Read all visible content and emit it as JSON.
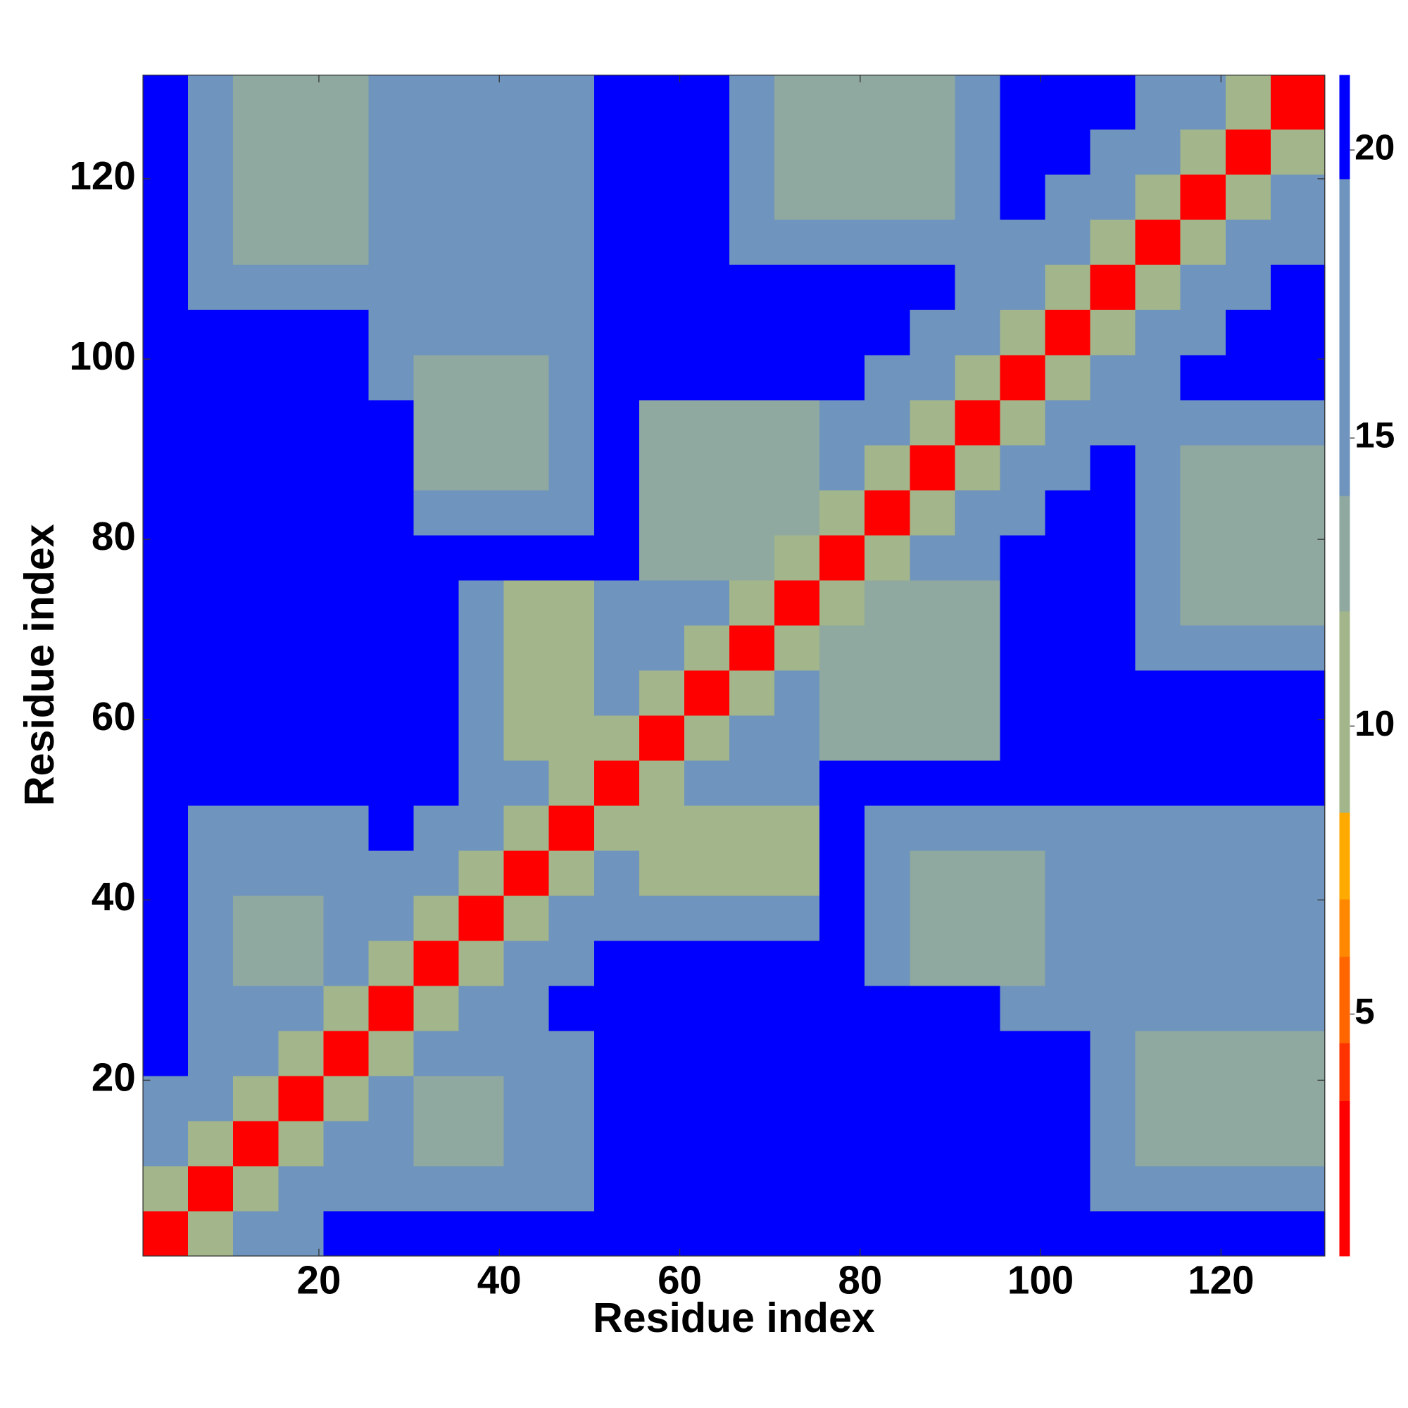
{
  "chart_data": {
    "type": "heatmap",
    "x_label": "Residue index",
    "y_label": "Residue index",
    "xlim": [
      0.5,
      131.5
    ],
    "ylim": [
      0.5,
      131.5
    ],
    "xticks": [
      20,
      40,
      60,
      80,
      100,
      120
    ],
    "yticks": [
      20,
      40,
      60,
      80,
      100,
      120
    ],
    "x_edges": [
      0.5,
      5.5,
      10.5,
      15.5,
      20.5,
      25.5,
      30.5,
      35.5,
      40.5,
      45.5,
      50.5,
      55.5,
      60.5,
      65.5,
      70.5,
      75.5,
      80.5,
      85.5,
      90.5,
      95.5,
      100.5,
      105.5,
      110.5,
      115.5,
      120.5,
      125.5,
      131.5
    ],
    "y_edges": [
      0.5,
      5.5,
      10.5,
      15.5,
      20.5,
      25.5,
      30.5,
      35.5,
      40.5,
      45.5,
      50.5,
      55.5,
      60.5,
      65.5,
      70.5,
      75.5,
      80.5,
      85.5,
      90.5,
      95.5,
      100.5,
      105.5,
      110.5,
      115.5,
      120.5,
      125.5,
      131.5
    ],
    "values": [
      [
        3,
        9,
        15,
        19,
        21,
        21,
        21,
        21,
        21,
        21,
        21,
        21,
        21,
        21,
        21,
        21,
        21,
        21,
        21,
        21,
        21,
        21,
        21,
        21,
        21,
        21
      ],
      [
        9,
        3,
        9,
        15,
        19,
        14,
        14,
        14,
        14,
        14,
        21,
        21,
        21,
        21,
        21,
        21,
        21,
        21,
        21,
        21,
        21,
        17,
        17,
        17,
        17,
        17
      ],
      [
        15,
        9,
        3,
        9,
        15,
        14,
        12,
        12,
        14,
        14,
        21,
        21,
        21,
        21,
        21,
        21,
        21,
        21,
        21,
        21,
        21,
        17,
        13,
        13,
        13,
        13
      ],
      [
        19,
        15,
        9,
        3,
        9,
        15,
        12,
        12,
        14,
        14,
        21,
        21,
        21,
        21,
        21,
        21,
        21,
        21,
        21,
        21,
        21,
        17,
        13,
        13,
        13,
        13
      ],
      [
        21,
        19,
        15,
        9,
        3,
        9,
        15,
        14,
        14,
        14,
        21,
        21,
        21,
        21,
        21,
        21,
        21,
        21,
        21,
        21,
        21,
        17,
        13,
        13,
        13,
        13
      ],
      [
        21,
        14,
        14,
        15,
        9,
        3,
        9,
        15,
        19,
        21,
        21,
        21,
        21,
        21,
        21,
        21,
        21,
        21,
        21,
        15,
        15,
        15,
        15,
        15,
        15,
        15
      ],
      [
        21,
        14,
        12,
        12,
        15,
        9,
        3,
        9,
        15,
        19,
        21,
        21,
        21,
        21,
        21,
        21,
        14,
        13,
        13,
        13,
        14,
        14,
        15,
        15,
        15,
        15
      ],
      [
        21,
        14,
        12,
        12,
        14,
        15,
        9,
        3,
        9,
        15,
        19,
        14,
        14,
        14,
        14,
        21,
        14,
        13,
        13,
        13,
        14,
        14,
        15,
        15,
        15,
        15
      ],
      [
        21,
        14,
        14,
        14,
        14,
        19,
        15,
        9,
        3,
        9,
        15,
        11,
        11,
        11,
        11,
        21,
        14,
        13,
        13,
        13,
        14,
        14,
        15,
        15,
        15,
        15
      ],
      [
        21,
        14,
        14,
        14,
        14,
        21,
        19,
        15,
        9,
        3,
        9,
        11,
        11,
        11,
        11,
        21,
        14,
        14,
        14,
        14,
        14,
        14,
        15,
        15,
        15,
        15
      ],
      [
        21,
        21,
        21,
        21,
        21,
        21,
        21,
        19,
        15,
        9,
        3,
        9,
        15,
        14,
        14,
        21,
        21,
        21,
        21,
        21,
        21,
        21,
        21,
        21,
        21,
        21
      ],
      [
        21,
        21,
        21,
        21,
        21,
        21,
        21,
        14,
        11,
        11,
        9,
        3,
        9,
        15,
        19,
        13,
        13,
        13,
        13,
        21,
        21,
        21,
        21,
        21,
        21,
        21
      ],
      [
        21,
        21,
        21,
        21,
        21,
        21,
        21,
        14,
        11,
        11,
        15,
        9,
        3,
        9,
        15,
        12,
        12,
        12,
        13,
        21,
        21,
        21,
        21,
        21,
        21,
        21
      ],
      [
        21,
        21,
        21,
        21,
        21,
        21,
        21,
        14,
        11,
        11,
        14,
        15,
        9,
        3,
        9,
        12,
        12,
        12,
        13,
        21,
        21,
        21,
        17,
        17,
        17,
        17
      ],
      [
        21,
        21,
        21,
        21,
        21,
        21,
        21,
        14,
        11,
        11,
        14,
        19,
        15,
        9,
        3,
        9,
        12,
        12,
        13,
        21,
        21,
        21,
        17,
        12,
        12,
        12
      ],
      [
        21,
        21,
        21,
        21,
        21,
        21,
        21,
        21,
        21,
        21,
        21,
        13,
        12,
        12,
        9,
        3,
        9,
        15,
        19,
        21,
        21,
        21,
        17,
        12,
        12,
        12
      ],
      [
        21,
        21,
        21,
        21,
        21,
        21,
        14,
        14,
        14,
        14,
        21,
        13,
        12,
        12,
        12,
        9,
        3,
        9,
        15,
        19,
        21,
        21,
        17,
        12,
        12,
        12
      ],
      [
        21,
        21,
        21,
        21,
        21,
        21,
        13,
        13,
        13,
        14,
        21,
        13,
        12,
        12,
        12,
        15,
        9,
        3,
        9,
        15,
        19,
        21,
        17,
        12,
        12,
        12
      ],
      [
        21,
        21,
        21,
        21,
        21,
        21,
        13,
        13,
        13,
        14,
        21,
        13,
        13,
        13,
        13,
        19,
        15,
        9,
        3,
        9,
        15,
        19,
        17,
        17,
        17,
        17
      ],
      [
        21,
        21,
        21,
        21,
        21,
        15,
        13,
        13,
        13,
        14,
        21,
        21,
        21,
        21,
        21,
        21,
        19,
        15,
        9,
        3,
        9,
        15,
        19,
        21,
        21,
        21
      ],
      [
        21,
        21,
        21,
        21,
        21,
        15,
        14,
        14,
        14,
        14,
        21,
        21,
        21,
        21,
        21,
        21,
        21,
        19,
        15,
        9,
        3,
        9,
        15,
        19,
        21,
        21
      ],
      [
        21,
        17,
        17,
        17,
        17,
        15,
        14,
        14,
        14,
        14,
        21,
        21,
        21,
        21,
        21,
        21,
        21,
        21,
        19,
        15,
        9,
        3,
        9,
        15,
        19,
        21
      ],
      [
        21,
        17,
        13,
        13,
        13,
        15,
        15,
        15,
        15,
        15,
        21,
        21,
        21,
        17,
        17,
        17,
        17,
        17,
        17,
        19,
        15,
        9,
        3,
        9,
        15,
        19
      ],
      [
        21,
        17,
        13,
        13,
        13,
        15,
        15,
        15,
        15,
        15,
        21,
        21,
        21,
        17,
        12,
        12,
        12,
        12,
        17,
        21,
        19,
        15,
        9,
        3,
        9,
        15
      ],
      [
        21,
        17,
        13,
        13,
        13,
        15,
        15,
        15,
        15,
        15,
        21,
        21,
        21,
        17,
        12,
        12,
        12,
        12,
        17,
        21,
        21,
        19,
        15,
        9,
        3,
        9
      ],
      [
        21,
        17,
        13,
        13,
        13,
        15,
        15,
        15,
        15,
        15,
        21,
        21,
        21,
        17,
        12,
        12,
        12,
        12,
        17,
        21,
        21,
        21,
        19,
        15,
        9,
        3
      ]
    ],
    "colorbar": {
      "lim": [
        0.8,
        21.3
      ],
      "ticks": [
        5,
        10,
        15,
        20
      ],
      "levels": [
        {
          "from": 0.8,
          "color": "#ff0000"
        },
        {
          "from": 3.5,
          "color": "#ff3300"
        },
        {
          "from": 4.5,
          "color": "#ff6600"
        },
        {
          "from": 6,
          "color": "#ff8800"
        },
        {
          "from": 7,
          "color": "#ffaa00"
        },
        {
          "from": 8.5,
          "color": "#a3b58a"
        },
        {
          "from": 12,
          "color": "#8fa9a0"
        },
        {
          "from": 14,
          "color": "#6f94bd"
        },
        {
          "from": 19.5,
          "color": "#0000ff"
        }
      ]
    }
  }
}
